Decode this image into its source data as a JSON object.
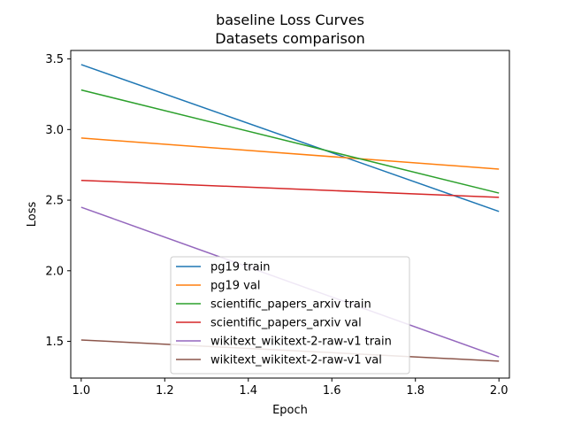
{
  "chart_data": {
    "type": "line",
    "title": "baseline Loss Curves",
    "subtitle": "Datasets comparison",
    "xlabel": "Epoch",
    "ylabel": "Loss",
    "xlim": [
      0.975,
      2.025
    ],
    "ylim": [
      1.24,
      3.56
    ],
    "xticks": [
      "1.0",
      "1.2",
      "1.4",
      "1.6",
      "1.8",
      "2.0"
    ],
    "yticks": [
      "1.5",
      "2.0",
      "2.5",
      "3.0",
      "3.5"
    ],
    "grid": false,
    "legend_position": "lower-center",
    "x": [
      1.0,
      2.0
    ],
    "series": [
      {
        "name": "pg19 train",
        "color": "#1f77b4",
        "values": [
          3.46,
          2.42
        ]
      },
      {
        "name": "pg19 val",
        "color": "#ff7f0e",
        "values": [
          2.94,
          2.72
        ]
      },
      {
        "name": "scientific_papers_arxiv train",
        "color": "#2ca02c",
        "values": [
          3.28,
          2.55
        ]
      },
      {
        "name": "scientific_papers_arxiv val",
        "color": "#d62728",
        "values": [
          2.64,
          2.52
        ]
      },
      {
        "name": "wikitext_wikitext-2-raw-v1 train",
        "color": "#9467bd",
        "values": [
          2.45,
          1.39
        ]
      },
      {
        "name": "wikitext_wikitext-2-raw-v1 val",
        "color": "#8c564b",
        "values": [
          1.51,
          1.36
        ]
      }
    ]
  }
}
